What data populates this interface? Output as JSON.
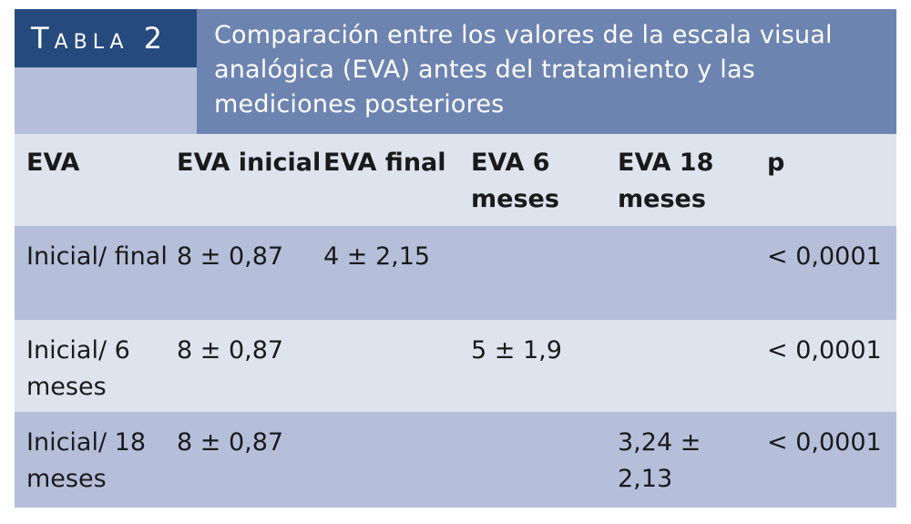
{
  "tabla": {
    "label": "Tabla 2",
    "caption": "Comparación entre los valores de la escala visual analógica (EVA) antes del tratamiento y las mediciones posteriores"
  },
  "table": {
    "headers": [
      "EVA",
      "EVA inicial",
      "EVA final",
      "EVA 6 meses",
      "EVA 18 meses",
      "p"
    ],
    "rows": [
      [
        "Inicial/ final",
        "8 ± 0,87",
        "4 ± 2,15",
        "",
        "",
        "< 0,0001"
      ],
      [
        "Inicial/ 6 meses",
        "8 ± 0,87",
        "",
        "5 ± 1,9",
        "",
        "< 0,0001"
      ],
      [
        "Inicial/ 18 meses",
        "8 ± 0,87",
        "",
        "",
        "3,24 ± 2,13",
        "< 0,0001"
      ]
    ]
  },
  "colors": {
    "label_bg": "#274a7e",
    "caption_bg": "#6d84b1",
    "row_dark": "#b6bfda",
    "row_light": "#dfe3ed"
  }
}
